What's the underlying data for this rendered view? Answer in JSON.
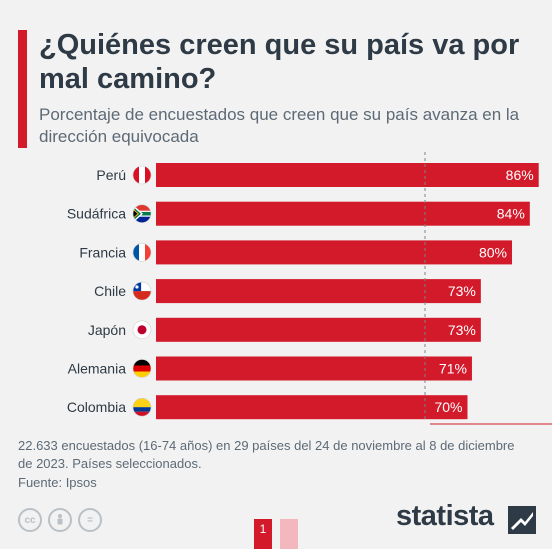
{
  "header": {
    "title": "¿Quiénes creen que su país va por mal camino?",
    "subtitle": "Porcentaje de encuestados que creen que su país avanza en la dirección equivocada"
  },
  "chart_data": {
    "type": "bar",
    "orientation": "horizontal",
    "categories": [
      "Perú",
      "Sudáfrica",
      "Francia",
      "Chile",
      "Japón",
      "Alemania",
      "Colombia"
    ],
    "values": [
      86,
      84,
      80,
      73,
      73,
      71,
      70
    ],
    "value_format": "{v}%",
    "bar_color": "#d31a2b",
    "reference_line": "dashed vertical",
    "title": "¿Quiénes creen que su país va por mal camino?",
    "subtitle": "Porcentaje de encuestados que creen que su país avanza en la dirección equivocada",
    "flags": [
      "peru-flag-icon",
      "south-africa-flag-icon",
      "france-flag-icon",
      "chile-flag-icon",
      "japan-flag-icon",
      "germany-flag-icon",
      "colombia-flag-icon"
    ]
  },
  "footer": {
    "note": "22.633 encuestados (16-74 años) en 29 países del 24 de noviembre al 8 de diciembre de 2023. Países seleccionados.",
    "source": "Fuente: Ipsos",
    "cc_icons": [
      "cc",
      "by",
      "="
    ],
    "pages": [
      "1",
      ""
    ],
    "brand": "statista"
  },
  "colors": {
    "accent": "#d31a2b",
    "text_dark": "#2e3a45",
    "text_muted": "#5d6a76",
    "background": "#f2f2f2"
  }
}
